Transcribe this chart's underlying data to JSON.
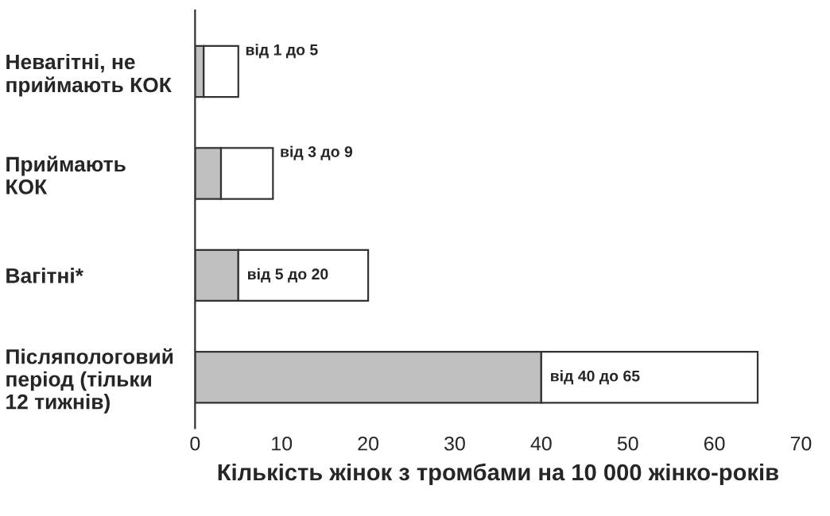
{
  "chart_data": {
    "type": "bar",
    "orientation": "horizontal",
    "stacked": true,
    "categories": [
      "Невагітні, не\nприймають КОК",
      "Приймають\nКОК",
      "Вагітні*",
      "Післяпологовий\nперіод (тільки\n12 тижнів)"
    ],
    "series": [
      {
        "color": "#c0c0c0",
        "values": [
          1,
          3,
          5,
          40
        ]
      },
      {
        "color": "#ffffff",
        "values": [
          4,
          6,
          15,
          25
        ],
        "value_labels": [
          "від 1 до 5",
          "від 3 до 9",
          "від 5 до 20",
          "від 40 до 65"
        ]
      }
    ],
    "xlabel": "Кількість жінок з тромбами на 10 000 жінко-років",
    "xlim": [
      0,
      70
    ],
    "xticks": [
      0,
      10,
      20,
      30,
      40,
      50,
      60,
      70
    ],
    "grid": false,
    "legend": false
  }
}
